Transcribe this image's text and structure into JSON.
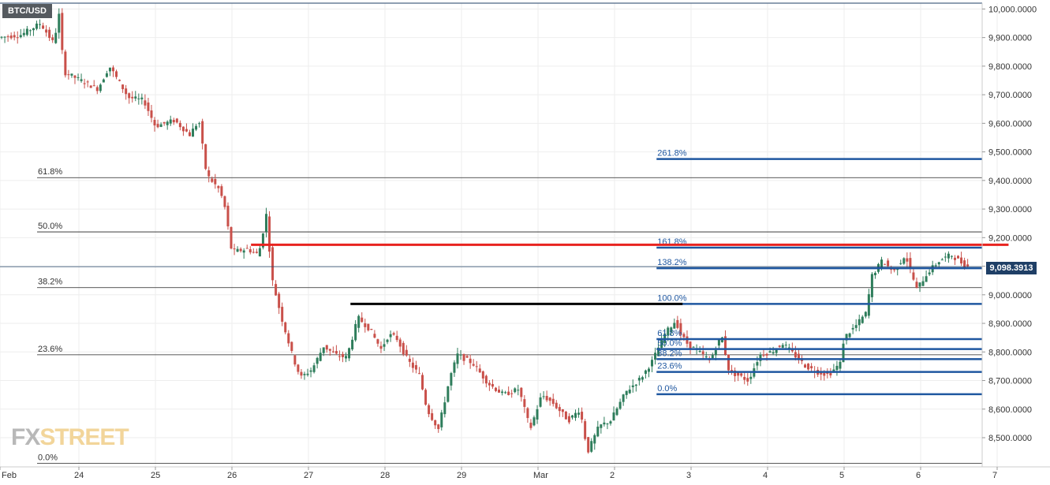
{
  "header": {
    "symbol": "BTC/USD"
  },
  "last_price_label": "9,098.3913",
  "watermark": {
    "fx": "FX",
    "street": "STREET"
  },
  "colors": {
    "bull": "#2e7d5b",
    "bear": "#c9504a",
    "fib_blue": "#1f57a0",
    "resistance_red": "#e8231f",
    "support_black": "#000000",
    "grid": "#eeeeee",
    "last_price": "#1f3f66"
  },
  "chart_data": {
    "type": "candlestick",
    "title": "BTC/USD",
    "ylim": [
      8410,
      10030
    ],
    "y_ticks": [
      {
        "value": 10000,
        "label": "10,000.0000"
      },
      {
        "value": 9900,
        "label": "9,900.0000"
      },
      {
        "value": 9800,
        "label": "9,800.0000"
      },
      {
        "value": 9700,
        "label": "9,700.0000"
      },
      {
        "value": 9600,
        "label": "9,600.0000"
      },
      {
        "value": 9500,
        "label": "9,500.0000"
      },
      {
        "value": 9400,
        "label": "9,400.0000"
      },
      {
        "value": 9300,
        "label": "9,300.0000"
      },
      {
        "value": 9200,
        "label": "9,200.0000"
      },
      {
        "value": 9100,
        "label": "9,100.0000"
      },
      {
        "value": 9000,
        "label": "9,000.0000"
      },
      {
        "value": 8900,
        "label": "8,900.0000"
      },
      {
        "value": 8800,
        "label": "8,800.0000"
      },
      {
        "value": 8700,
        "label": "8,700.0000"
      },
      {
        "value": 8600,
        "label": "8,600.0000"
      },
      {
        "value": 8500,
        "label": "8,500.0000"
      }
    ],
    "x_ticks": [
      {
        "t": 0,
        "label": "Feb"
      },
      {
        "t": 1,
        "label": "24"
      },
      {
        "t": 2,
        "label": "25"
      },
      {
        "t": 3,
        "label": "26"
      },
      {
        "t": 4,
        "label": "27"
      },
      {
        "t": 5,
        "label": "28"
      },
      {
        "t": 6,
        "label": "29"
      },
      {
        "t": 7,
        "label": "Mar"
      },
      {
        "t": 8,
        "label": "2"
      },
      {
        "t": 9,
        "label": "3"
      },
      {
        "t": 10,
        "label": "4"
      },
      {
        "t": 11,
        "label": "5"
      },
      {
        "t": 12,
        "label": "6"
      },
      {
        "t": 13,
        "label": "7"
      }
    ],
    "path": [
      [
        0.0,
        9900
      ],
      [
        0.3,
        9910
      ],
      [
        0.55,
        9950
      ],
      [
        0.72,
        9880
      ],
      [
        0.8,
        9990
      ],
      [
        0.85,
        9780
      ],
      [
        1.15,
        9740
      ],
      [
        1.3,
        9720
      ],
      [
        1.45,
        9800
      ],
      [
        1.7,
        9690
      ],
      [
        1.9,
        9680
      ],
      [
        2.05,
        9590
      ],
      [
        2.3,
        9610
      ],
      [
        2.5,
        9560
      ],
      [
        2.62,
        9610
      ],
      [
        2.72,
        9420
      ],
      [
        2.88,
        9370
      ],
      [
        2.95,
        9320
      ],
      [
        3.05,
        9150
      ],
      [
        3.25,
        9160
      ],
      [
        3.4,
        9140
      ],
      [
        3.5,
        9280
      ],
      [
        3.58,
        9050
      ],
      [
        3.7,
        8920
      ],
      [
        3.85,
        8780
      ],
      [
        3.95,
        8710
      ],
      [
        4.1,
        8740
      ],
      [
        4.25,
        8820
      ],
      [
        4.4,
        8790
      ],
      [
        4.55,
        8780
      ],
      [
        4.7,
        8920
      ],
      [
        4.85,
        8880
      ],
      [
        5.0,
        8810
      ],
      [
        5.1,
        8860
      ],
      [
        5.2,
        8850
      ],
      [
        5.35,
        8770
      ],
      [
        5.5,
        8720
      ],
      [
        5.6,
        8600
      ],
      [
        5.75,
        8530
      ],
      [
        5.9,
        8710
      ],
      [
        6.0,
        8790
      ],
      [
        6.2,
        8760
      ],
      [
        6.4,
        8690
      ],
      [
        6.6,
        8650
      ],
      [
        6.8,
        8670
      ],
      [
        6.95,
        8530
      ],
      [
        7.1,
        8650
      ],
      [
        7.25,
        8620
      ],
      [
        7.45,
        8560
      ],
      [
        7.6,
        8600
      ],
      [
        7.7,
        8450
      ],
      [
        7.85,
        8540
      ],
      [
        8.0,
        8560
      ],
      [
        8.2,
        8660
      ],
      [
        8.4,
        8710
      ],
      [
        8.55,
        8770
      ],
      [
        8.7,
        8860
      ],
      [
        8.85,
        8910
      ],
      [
        8.92,
        8860
      ],
      [
        9.0,
        8830
      ],
      [
        9.15,
        8800
      ],
      [
        9.3,
        8770
      ],
      [
        9.45,
        8860
      ],
      [
        9.55,
        8730
      ],
      [
        9.65,
        8720
      ],
      [
        9.8,
        8700
      ],
      [
        9.95,
        8790
      ],
      [
        10.1,
        8800
      ],
      [
        10.25,
        8830
      ],
      [
        10.4,
        8790
      ],
      [
        10.55,
        8750
      ],
      [
        10.7,
        8730
      ],
      [
        10.85,
        8720
      ],
      [
        11.0,
        8760
      ],
      [
        11.05,
        8850
      ],
      [
        11.2,
        8890
      ],
      [
        11.35,
        8940
      ],
      [
        11.4,
        9060
      ],
      [
        11.55,
        9120
      ],
      [
        11.7,
        9080
      ],
      [
        11.85,
        9140
      ],
      [
        12.0,
        9020
      ],
      [
        12.15,
        9080
      ],
      [
        12.3,
        9120
      ],
      [
        12.45,
        9140
      ],
      [
        12.55,
        9120
      ],
      [
        12.65,
        9098
      ]
    ],
    "long_term_fibonacci": [
      {
        "label": "61.8%",
        "value": 9410
      },
      {
        "label": "50.0%",
        "value": 9220
      },
      {
        "label": "38.2%",
        "value": 9025
      },
      {
        "label": "23.6%",
        "value": 8790
      },
      {
        "label": "0.0%",
        "value": 8410
      }
    ],
    "short_term_fibonacci": [
      {
        "label": "261.8%",
        "value": 9475
      },
      {
        "label": "161.8%",
        "value": 9165
      },
      {
        "label": "138.2%",
        "value": 9093
      },
      {
        "label": "100.0%",
        "value": 8968
      },
      {
        "label": "61.8%",
        "value": 8845
      },
      {
        "label": "50.0%",
        "value": 8810
      },
      {
        "label": "38.2%",
        "value": 8775
      },
      {
        "label": "23.6%",
        "value": 8730
      },
      {
        "label": "0.0%",
        "value": 8652
      }
    ],
    "resistance_line": {
      "value": 9175,
      "from_t": 3.28,
      "to_t": 13.18
    },
    "support_line": {
      "value": 8968,
      "from_t": 4.58,
      "to_t": 8.92
    },
    "last_price": 9098.3913
  }
}
